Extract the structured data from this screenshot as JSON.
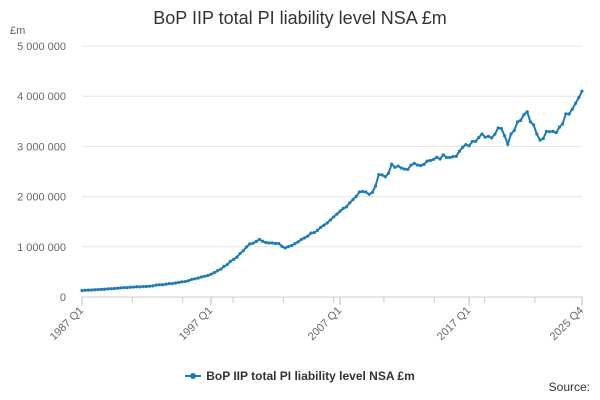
{
  "chart_data": {
    "type": "line",
    "title": "BoP IIP total PI liability level NSA £m",
    "unit_label": "£m",
    "x_ticks": [
      "1987 Q1",
      "1997 Q1",
      "2007 Q1",
      "2017 Q1",
      "2025 Q4"
    ],
    "y_ticks": [
      "0",
      "1 000 000",
      "2 000 000",
      "3 000 000",
      "4 000 000",
      "5 000 000"
    ],
    "ylim": [
      0,
      5000000
    ],
    "xlim": [
      1987.0,
      2025.75
    ],
    "grid": true,
    "legend_position": "bottom",
    "source_label": "Source:",
    "series": [
      {
        "name": "BoP IIP total PI liability level NSA £m",
        "color": "#1f7cb5",
        "anchors": [
          [
            1987.0,
            130000
          ],
          [
            1988.0,
            145000
          ],
          [
            1989.0,
            160000
          ],
          [
            1990.0,
            180000
          ],
          [
            1991.0,
            200000
          ],
          [
            1992.0,
            210000
          ],
          [
            1993.0,
            240000
          ],
          [
            1994.0,
            270000
          ],
          [
            1995.0,
            310000
          ],
          [
            1996.0,
            380000
          ],
          [
            1997.0,
            450000
          ],
          [
            1998.0,
            600000
          ],
          [
            1999.0,
            800000
          ],
          [
            2000.0,
            1050000
          ],
          [
            2000.75,
            1150000
          ],
          [
            2001.5,
            1080000
          ],
          [
            2002.25,
            1050000
          ],
          [
            2002.75,
            980000
          ],
          [
            2003.5,
            1050000
          ],
          [
            2004.0,
            1150000
          ],
          [
            2005.0,
            1300000
          ],
          [
            2006.0,
            1450000
          ],
          [
            2007.0,
            1700000
          ],
          [
            2008.0,
            1950000
          ],
          [
            2008.5,
            2100000
          ],
          [
            2009.5,
            2050000
          ],
          [
            2010.0,
            2450000
          ],
          [
            2010.5,
            2400000
          ],
          [
            2011.0,
            2600000
          ],
          [
            2012.0,
            2550000
          ],
          [
            2013.0,
            2650000
          ],
          [
            2014.0,
            2700000
          ],
          [
            2015.0,
            2800000
          ],
          [
            2016.0,
            2850000
          ],
          [
            2017.0,
            3050000
          ],
          [
            2018.0,
            3250000
          ],
          [
            2018.75,
            3200000
          ],
          [
            2019.5,
            3400000
          ],
          [
            2020.0,
            3100000
          ],
          [
            2020.75,
            3500000
          ],
          [
            2021.5,
            3700000
          ],
          [
            2022.0,
            3400000
          ],
          [
            2022.5,
            3100000
          ],
          [
            2023.0,
            3250000
          ],
          [
            2023.75,
            3300000
          ],
          [
            2024.25,
            3500000
          ],
          [
            2025.0,
            3800000
          ],
          [
            2025.75,
            4100000
          ]
        ]
      }
    ]
  }
}
